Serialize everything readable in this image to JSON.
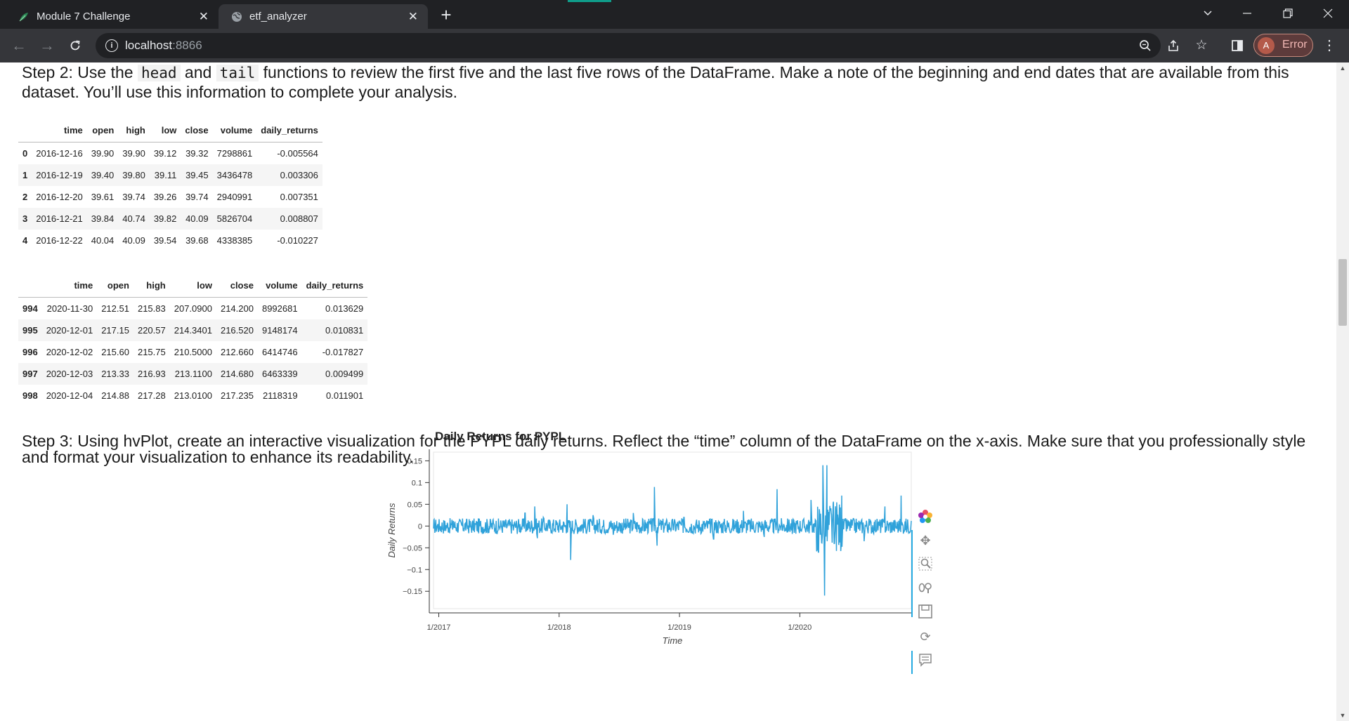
{
  "browser": {
    "tabs": [
      {
        "title": "Module 7 Challenge",
        "active": false
      },
      {
        "title": "etf_analyzer",
        "active": true
      }
    ],
    "url_host": "localhost",
    "url_port": ":8866",
    "profile_initial": "A",
    "profile_status": "Error"
  },
  "step2": {
    "prefix": "Step 2: Use the",
    "code1": "head",
    "mid": "and",
    "code2": "tail",
    "suffix": "functions to review the first five and the last five rows of the DataFrame. Make a note of the beginning and end dates that are available from this dataset. You’ll use this information to complete your analysis."
  },
  "head_table": {
    "columns": [
      "",
      "time",
      "open",
      "high",
      "low",
      "close",
      "volume",
      "daily_returns"
    ],
    "rows": [
      [
        "0",
        "2016-12-16",
        "39.90",
        "39.90",
        "39.12",
        "39.32",
        "7298861",
        "-0.005564"
      ],
      [
        "1",
        "2016-12-19",
        "39.40",
        "39.80",
        "39.11",
        "39.45",
        "3436478",
        "0.003306"
      ],
      [
        "2",
        "2016-12-20",
        "39.61",
        "39.74",
        "39.26",
        "39.74",
        "2940991",
        "0.007351"
      ],
      [
        "3",
        "2016-12-21",
        "39.84",
        "40.74",
        "39.82",
        "40.09",
        "5826704",
        "0.008807"
      ],
      [
        "4",
        "2016-12-22",
        "40.04",
        "40.09",
        "39.54",
        "39.68",
        "4338385",
        "-0.010227"
      ]
    ]
  },
  "tail_table": {
    "columns": [
      "",
      "time",
      "open",
      "high",
      "low",
      "close",
      "volume",
      "daily_returns"
    ],
    "rows": [
      [
        "994",
        "2020-11-30",
        "212.51",
        "215.83",
        "207.0900",
        "214.200",
        "8992681",
        "0.013629"
      ],
      [
        "995",
        "2020-12-01",
        "217.15",
        "220.57",
        "214.3401",
        "216.520",
        "9148174",
        "0.010831"
      ],
      [
        "996",
        "2020-12-02",
        "215.60",
        "215.75",
        "210.5000",
        "212.660",
        "6414746",
        "-0.017827"
      ],
      [
        "997",
        "2020-12-03",
        "213.33",
        "216.93",
        "213.1100",
        "214.680",
        "6463339",
        "0.009499"
      ],
      [
        "998",
        "2020-12-04",
        "214.88",
        "217.28",
        "213.0100",
        "217.235",
        "2118319",
        "0.011901"
      ]
    ]
  },
  "step3": {
    "text": "Step 3: Using hvPlot, create an interactive visualization for the PYPL daily returns. Reflect the “time” column of the DataFrame on the x-axis. Make sure that you professionally style and format your visualization to enhance its readability."
  },
  "chart_data": {
    "type": "line",
    "title": "Daily Returns for PYPL",
    "xlabel": "Time",
    "ylabel": "Daily Returns",
    "ylim": [
      -0.19,
      0.17
    ],
    "xlim": [
      "2016-12-16",
      "2020-12-04"
    ],
    "x_ticks": [
      "1/2017",
      "1/2018",
      "1/2019",
      "1/2020"
    ],
    "y_ticks": [
      0.15,
      0.1,
      0.05,
      0,
      -0.05,
      -0.1,
      -0.15
    ],
    "y_tick_labels": [
      "0.15",
      "0.1",
      "0.05",
      "0",
      "−0.05",
      "−0.1",
      "−0.15"
    ],
    "line_color": "#30a2da",
    "series": [
      {
        "x": [
          "2016-12-16",
          "2017-02-15",
          "2017-04-15",
          "2017-06-15",
          "2017-08-15",
          "2017-09-20",
          "2017-10-20",
          "2017-10-27",
          "2017-11-15",
          "2018-01-25",
          "2018-02-06",
          "2018-04-15",
          "2018-06-15",
          "2018-08-15",
          "2018-10-18",
          "2018-10-25",
          "2019-01-15",
          "2019-04-15",
          "2019-07-15",
          "2019-09-15",
          "2019-10-24",
          "2019-12-10",
          "2020-02-05",
          "2020-02-27",
          "2020-03-12",
          "2020-03-16",
          "2020-03-24",
          "2020-04-15",
          "2020-05-07",
          "2020-07-15",
          "2020-09-15",
          "2020-11-03",
          "2020-12-04"
        ],
        "y": [
          -0.005564,
          0.012,
          -0.008,
          0.015,
          -0.01,
          0.03,
          0.045,
          -0.028,
          0.02,
          0.05,
          -0.078,
          0.025,
          -0.02,
          0.03,
          0.09,
          -0.045,
          0.02,
          -0.03,
          0.035,
          -0.025,
          0.085,
          -0.018,
          0.06,
          -0.06,
          0.14,
          -0.16,
          0.14,
          -0.04,
          0.07,
          -0.035,
          0.045,
          0.07,
          0.011901
        ]
      }
    ]
  }
}
